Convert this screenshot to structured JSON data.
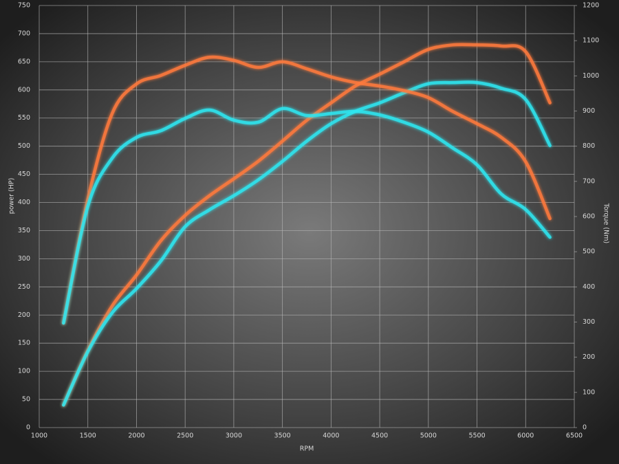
{
  "chart_data": {
    "type": "line",
    "x_label": "RPM",
    "y_label": "power (HP)",
    "y2_label": "Torque (Nm)",
    "x": [
      1250,
      1500,
      1750,
      2000,
      2250,
      2500,
      2750,
      3000,
      3250,
      3500,
      3750,
      4000,
      4250,
      4500,
      4750,
      5000,
      5250,
      5500,
      5750,
      6000,
      6250
    ],
    "series": [
      {
        "color": "#ff7a3c",
        "axis": "y",
        "values": [
          40,
          137,
          216,
          271,
          332,
          377,
          412,
          442,
          473,
          509,
          546,
          577,
          607,
          628,
          650,
          672,
          680,
          680,
          678,
          668,
          577
        ]
      },
      {
        "color": "#2ee6f0",
        "axis": "y",
        "values": [
          40,
          135,
          204,
          247,
          296,
          357,
          387,
          412,
          440,
          473,
          509,
          540,
          562,
          577,
          595,
          611,
          613,
          613,
          603,
          583,
          501
        ]
      },
      {
        "color": "#ff7a3c",
        "axis": "y2",
        "values": [
          297,
          649,
          893,
          977,
          1001,
          1030,
          1053,
          1044,
          1024,
          1040,
          1020,
          997,
          981,
          971,
          958,
          938,
          899,
          864,
          825,
          756,
          594
        ]
      },
      {
        "color": "#2ee6f0",
        "axis": "y2",
        "values": [
          297,
          629,
          766,
          825,
          844,
          879,
          903,
          874,
          868,
          907,
          887,
          893,
          899,
          889,
          868,
          840,
          795,
          747,
          664,
          620,
          541
        ]
      }
    ],
    "xlim": [
      1000,
      6500
    ],
    "xticks": [
      1000,
      1500,
      2000,
      2500,
      3000,
      3500,
      4000,
      4500,
      5000,
      5500,
      6000,
      6500
    ],
    "ylim": [
      0,
      750
    ],
    "yticks": [
      0,
      50,
      100,
      150,
      200,
      250,
      300,
      350,
      400,
      450,
      500,
      550,
      600,
      650,
      700,
      750
    ],
    "y2lim": [
      0,
      1200
    ],
    "y2ticks": [
      0,
      100,
      200,
      300,
      400,
      500,
      600,
      700,
      800,
      900,
      1000,
      1100,
      1200
    ],
    "grid": true
  }
}
